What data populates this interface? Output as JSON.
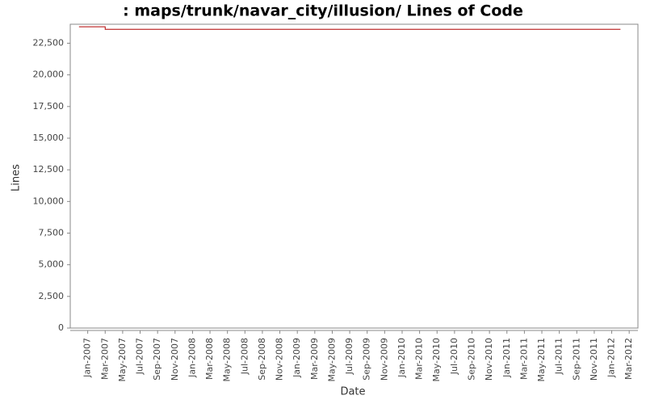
{
  "chart_data": {
    "type": "line",
    "step": true,
    "title": ": maps/trunk/navar_city/illusion/ Lines of Code",
    "x_label": "Date",
    "y_label": "Lines",
    "x": [
      "Dec-2006",
      "Mar-2007",
      "Feb-2012"
    ],
    "series": [
      {
        "name": "Lines",
        "color": "#b00000",
        "values": [
          23800,
          23600,
          23600
        ]
      }
    ],
    "xlim": [
      "Nov-2006",
      "Apr-2012"
    ],
    "xticks": [
      "Jan-2007",
      "Mar-2007",
      "May-2007",
      "Jul-2007",
      "Sep-2007",
      "Nov-2007",
      "Jan-2008",
      "Mar-2008",
      "May-2008",
      "Jul-2008",
      "Sep-2008",
      "Nov-2008",
      "Jan-2009",
      "Mar-2009",
      "May-2009",
      "Jul-2009",
      "Sep-2009",
      "Nov-2009",
      "Jan-2010",
      "Mar-2010",
      "May-2010",
      "Jul-2010",
      "Sep-2010",
      "Nov-2010",
      "Jan-2011",
      "Mar-2011",
      "May-2011",
      "Jul-2011",
      "Sep-2011",
      "Nov-2011",
      "Jan-2012",
      "Mar-2012"
    ],
    "ylim": [
      0,
      24000
    ],
    "yticks": [
      0,
      {
        "value": 2500,
        "label": "2,500"
      },
      {
        "value": 5000,
        "label": "5,000"
      },
      {
        "value": 7500,
        "label": "7,500"
      },
      {
        "value": 10000,
        "label": "10,000"
      },
      {
        "value": 12500,
        "label": "12,500"
      },
      {
        "value": 15000,
        "label": "15,000"
      },
      {
        "value": 17500,
        "label": "17,500"
      },
      {
        "value": 20000,
        "label": "20,000"
      },
      {
        "value": 22500,
        "label": "22,500"
      }
    ],
    "grid": false
  }
}
